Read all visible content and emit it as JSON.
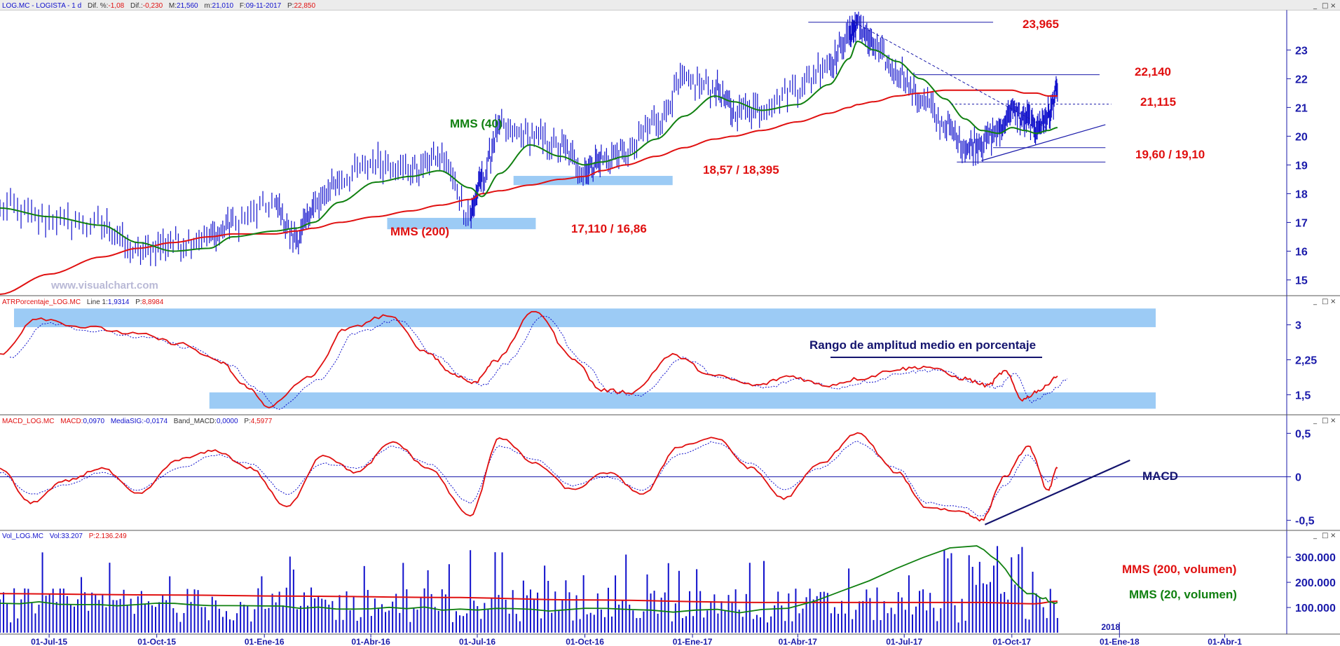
{
  "colors": {
    "price": "#1010cc",
    "sma200": "#e01010",
    "sma40": "#108010",
    "annotation_red": "#e01010",
    "annotation_green": "#108010",
    "annotation_navy": "#14146e",
    "zone": "#9ccbf5",
    "axis": "#1a1aaa",
    "volume": "#1010cc"
  },
  "window_buttons": [
    "_",
    "□",
    "×"
  ],
  "panels": {
    "price": {
      "header_name": "LOG.MC - LOGISTA - 1 d",
      "header_fields": [
        {
          "label": "Dif. %:",
          "value": "-1,08"
        },
        {
          "label": "Dif.:",
          "value": "-0,230"
        },
        {
          "label": "M:",
          "value": "21,560"
        },
        {
          "label": "m:",
          "value": "21,010"
        },
        {
          "label": "F:",
          "value": "09-11-2017"
        },
        {
          "label": "P:",
          "value": "22,850"
        }
      ],
      "watermark": "www.visualchart.com"
    },
    "atr": {
      "header_name": "ATRPorcentaje_LOG.MC",
      "header_fields": [
        {
          "label": "Line 1:",
          "value": "1,9314"
        },
        {
          "label": "P:",
          "value": "8,8984"
        }
      ]
    },
    "macd": {
      "header_name": "MACD_LOG.MC",
      "header_fields": [
        {
          "label": "MACD:",
          "value": "0,0970"
        },
        {
          "label": "MediaSIG:",
          "value": "-0,0174"
        },
        {
          "label": "Band_MACD:",
          "value": "0,0000"
        },
        {
          "label": "P:",
          "value": "4,5977"
        }
      ]
    },
    "volume": {
      "header_name": "Vol_LOG.MC",
      "header_fields": [
        {
          "label": "Vol:",
          "value": "33.207"
        },
        {
          "label": "P:",
          "value": "2.136.249"
        }
      ]
    }
  },
  "annotations": {
    "price": {
      "level_high": "23,965",
      "level_2": "22,140",
      "level_3": "21,115",
      "support_1": "19,60 / 19,10",
      "support_2": "18,57 / 18,395",
      "support_3": "17,110 / 16,86",
      "sma200": "MMS (200)",
      "sma40": "MMS (40)"
    },
    "atr": {
      "title": "Rango de amplitud medio en porcentaje"
    },
    "macd": {
      "title": "MACD"
    },
    "volume": {
      "sma200": "MMS (200, volumen)",
      "sma20": "MMS (20, volumen)"
    }
  },
  "chart_data": [
    {
      "type": "line",
      "title": "LOG.MC - LOGISTA - 1 d",
      "x": [
        "2015-05-20",
        "2015-07-01",
        "2015-08-15",
        "2015-09-15",
        "2015-10-15",
        "2015-11-15",
        "2015-12-05",
        "2016-01-10",
        "2016-01-28",
        "2016-02-12",
        "2016-03-05",
        "2016-04-05",
        "2016-05-05",
        "2016-05-30",
        "2016-06-25",
        "2016-07-05",
        "2016-07-20",
        "2016-08-15",
        "2016-09-10",
        "2016-10-01",
        "2016-10-15",
        "2016-11-05",
        "2016-12-01",
        "2016-12-25",
        "2017-01-20",
        "2017-02-05",
        "2017-03-01",
        "2017-04-01",
        "2017-04-28",
        "2017-05-15",
        "2017-05-22",
        "2017-06-05",
        "2017-06-25",
        "2017-07-15",
        "2017-08-05",
        "2017-08-22",
        "2017-09-05",
        "2017-09-20",
        "2017-10-01",
        "2017-10-12",
        "2017-10-22",
        "2017-11-01",
        "2017-11-09"
      ],
      "series": [
        {
          "name": "LOG.MC",
          "values": [
            17.5,
            17.1,
            16.9,
            15.9,
            16.3,
            16.5,
            17.0,
            17.6,
            16.4,
            17.5,
            18.5,
            19.1,
            18.8,
            19.3,
            17.3,
            18.5,
            20.3,
            20.0,
            19.6,
            18.8,
            19.2,
            19.4,
            20.5,
            21.9,
            21.7,
            20.9,
            21.0,
            21.7,
            22.5,
            23.5,
            23.9,
            23.1,
            22.2,
            21.3,
            20.4,
            19.6,
            19.8,
            20.2,
            20.9,
            20.6,
            20.3,
            20.7,
            21.6
          ]
        },
        {
          "name": "MMS (40)",
          "values": [
            17.5,
            17.2,
            16.9,
            16.3,
            16.0,
            16.1,
            16.5,
            16.7,
            16.8,
            17.0,
            17.7,
            18.4,
            18.6,
            18.8,
            18.2,
            17.9,
            18.7,
            19.7,
            19.3,
            19.0,
            19.1,
            19.3,
            19.9,
            20.7,
            21.4,
            21.2,
            20.9,
            21.1,
            21.8,
            22.7,
            23.3,
            23.0,
            22.6,
            22.0,
            21.3,
            20.6,
            20.2,
            20.1,
            20.3,
            20.2,
            20.1,
            20.2,
            20.3
          ]
        },
        {
          "name": "MMS (200)",
          "values": [
            14.5,
            15.2,
            15.8,
            16.1,
            16.3,
            16.5,
            16.6,
            16.6,
            16.7,
            16.8,
            17.0,
            17.2,
            17.4,
            17.6,
            17.8,
            18.0,
            18.1,
            18.3,
            18.5,
            18.6,
            18.8,
            19.0,
            19.3,
            19.6,
            19.9,
            20.0,
            20.2,
            20.5,
            20.8,
            21.0,
            21.1,
            21.2,
            21.4,
            21.5,
            21.6,
            21.6,
            21.6,
            21.6,
            21.6,
            21.5,
            21.5,
            21.4,
            21.4
          ]
        }
      ],
      "yticks": [
        15,
        16,
        17,
        18,
        19,
        20,
        21,
        22,
        23
      ],
      "ylim": [
        14.5,
        24.3
      ],
      "levels": [
        23.965,
        22.14,
        21.115,
        19.6,
        19.1
      ],
      "zones": [
        [
          18.57,
          18.395
        ],
        [
          17.11,
          16.86
        ]
      ]
    },
    {
      "type": "line",
      "title": "ATRPorcentaje_LOG.MC",
      "x": [
        "2015-05-20",
        "2015-06-20",
        "2015-08-01",
        "2015-09-15",
        "2015-10-20",
        "2015-11-25",
        "2015-12-15",
        "2016-01-05",
        "2016-02-10",
        "2016-03-10",
        "2016-04-15",
        "2016-05-20",
        "2016-06-10",
        "2016-06-28",
        "2016-07-15",
        "2016-08-20",
        "2016-09-20",
        "2016-10-15",
        "2016-11-10",
        "2016-12-15",
        "2017-01-20",
        "2017-02-25",
        "2017-03-25",
        "2017-04-25",
        "2017-05-25",
        "2017-06-25",
        "2017-07-20",
        "2017-08-20",
        "2017-09-10",
        "2017-09-25",
        "2017-10-10",
        "2017-10-25",
        "2017-11-09"
      ],
      "series": [
        {
          "name": "Line 1",
          "values": [
            2.35,
            3.15,
            2.95,
            2.8,
            2.6,
            2.2,
            1.7,
            1.25,
            1.9,
            2.9,
            3.2,
            2.4,
            1.95,
            1.75,
            2.2,
            3.3,
            2.3,
            1.6,
            1.55,
            2.35,
            1.9,
            1.7,
            1.9,
            1.7,
            1.85,
            2.05,
            2.1,
            1.85,
            1.7,
            2.0,
            1.4,
            1.6,
            1.9
          ]
        }
      ],
      "yticks": [
        1.5,
        2.25,
        3
      ],
      "ytick_labels": [
        "1,5",
        "2,25",
        "3"
      ],
      "ylim": [
        1.1,
        3.4
      ],
      "zones": [
        [
          2.95,
          3.35
        ],
        [
          1.2,
          1.55
        ]
      ]
    },
    {
      "type": "line",
      "title": "MACD_LOG.MC",
      "x": [
        "2015-05-20",
        "2015-06-15",
        "2015-07-15",
        "2015-08-15",
        "2015-09-15",
        "2015-10-20",
        "2015-11-20",
        "2015-12-20",
        "2016-01-20",
        "2016-02-20",
        "2016-03-20",
        "2016-04-20",
        "2016-05-20",
        "2016-06-25",
        "2016-07-20",
        "2016-08-20",
        "2016-09-20",
        "2016-10-20",
        "2016-11-20",
        "2016-12-20",
        "2017-01-20",
        "2017-02-20",
        "2017-03-20",
        "2017-04-20",
        "2017-05-22",
        "2017-06-25",
        "2017-07-20",
        "2017-08-20",
        "2017-09-05",
        "2017-09-25",
        "2017-10-15",
        "2017-11-01",
        "2017-11-09"
      ],
      "series": [
        {
          "name": "MACD",
          "values": [
            0.1,
            -0.3,
            -0.05,
            0.1,
            -0.2,
            0.2,
            0.3,
            0.1,
            -0.35,
            0.25,
            0.05,
            0.4,
            0.1,
            -0.45,
            0.45,
            0.15,
            -0.15,
            0.05,
            -0.2,
            0.35,
            0.45,
            0.1,
            -0.25,
            0.15,
            0.5,
            0.05,
            -0.35,
            -0.4,
            -0.5,
            0.0,
            0.35,
            -0.15,
            0.1
          ]
        },
        {
          "name": "MediaSIG",
          "values": [
            0.05,
            -0.2,
            -0.1,
            0.05,
            -0.15,
            0.1,
            0.25,
            0.15,
            -0.2,
            0.15,
            0.1,
            0.35,
            0.15,
            -0.3,
            0.35,
            0.2,
            -0.1,
            0.0,
            -0.15,
            0.25,
            0.4,
            0.15,
            -0.15,
            0.1,
            0.4,
            0.1,
            -0.3,
            -0.35,
            -0.45,
            -0.1,
            0.25,
            -0.05,
            -0.02
          ]
        }
      ],
      "yticks": [
        -0.5,
        0,
        0.5
      ],
      "ytick_labels": [
        "-0,5",
        "0",
        "0,5"
      ],
      "ylim": [
        -0.6,
        0.6
      ]
    },
    {
      "type": "bar",
      "title": "Vol_LOG.MC",
      "x_range": [
        "2015-05-20",
        "2017-11-09"
      ],
      "series": [
        {
          "name": "MMS (200, volumen)",
          "values": [
            155000,
            150000,
            145000,
            140000,
            130000,
            120000,
            120000,
            115000,
            125000
          ]
        },
        {
          "name": "MMS (20, volumen)",
          "values": [
            120000,
            110000,
            100000,
            95000,
            90000,
            85000,
            340000,
            150000,
            120000
          ]
        }
      ],
      "sma_x": [
        "2015-05-20",
        "2015-10-01",
        "2016-02-01",
        "2016-06-01",
        "2016-10-01",
        "2017-03-01",
        "2017-09-01",
        "2017-10-20",
        "2017-11-09"
      ],
      "yticks": [
        100000,
        200000,
        300000
      ],
      "ytick_labels": [
        "100.000",
        "200.000",
        "300.000"
      ],
      "ylim": [
        0,
        370000
      ]
    }
  ],
  "x_axis": {
    "ticks": [
      {
        "date": "2015-07-01",
        "label": "01-Jul-15"
      },
      {
        "date": "2015-10-01",
        "label": "01-Oct-15"
      },
      {
        "date": "2016-01-01",
        "label": "01-Ene-16"
      },
      {
        "date": "2016-04-01",
        "label": "01-Abr-16"
      },
      {
        "date": "2016-07-01",
        "label": "01-Jul-16"
      },
      {
        "date": "2016-10-01",
        "label": "01-Oct-16"
      },
      {
        "date": "2017-01-01",
        "label": "01-Ene-17"
      },
      {
        "date": "2017-04-01",
        "label": "01-Abr-17"
      },
      {
        "date": "2017-07-01",
        "label": "01-Jul-17"
      },
      {
        "date": "2017-10-01",
        "label": "01-Oct-17"
      },
      {
        "date": "2018-01-01",
        "label": "01-Ene-18"
      },
      {
        "date": "2018-04-01",
        "label": "01-Abr-1"
      }
    ],
    "year_marker": "2018"
  }
}
